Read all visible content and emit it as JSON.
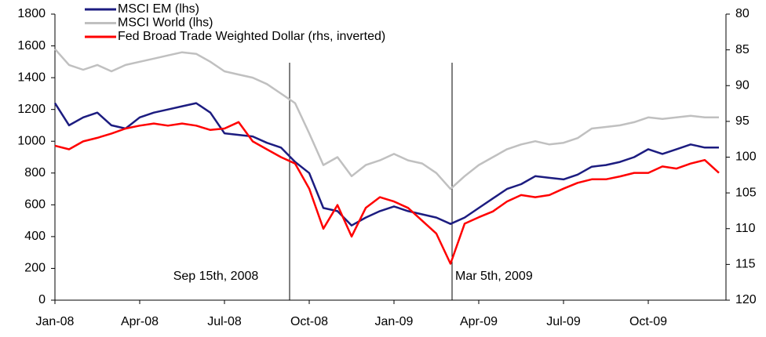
{
  "chart_data": {
    "type": "line",
    "categories": [
      "Jan-08",
      null,
      null,
      null,
      null,
      null,
      "Apr-08",
      null,
      null,
      null,
      null,
      null,
      "Jul-08",
      null,
      null,
      null,
      null,
      null,
      "Oct-08",
      null,
      null,
      null,
      null,
      null,
      "Jan-09",
      null,
      null,
      null,
      null,
      null,
      "Apr-09",
      null,
      null,
      null,
      null,
      null,
      "Jul-09",
      null,
      null,
      null,
      null,
      null,
      "Oct-09",
      null,
      null,
      null,
      null,
      null
    ],
    "series": [
      {
        "name": "MSCI EM (lhs)",
        "color": "#1c1c80",
        "values": [
          1240,
          1100,
          1150,
          1180,
          1100,
          1080,
          1150,
          1180,
          1200,
          1220,
          1240,
          1180,
          1050,
          1040,
          1030,
          990,
          960,
          870,
          800,
          580,
          560,
          470,
          520,
          560,
          590,
          560,
          540,
          520,
          480,
          520,
          580,
          640,
          700,
          730,
          780,
          770,
          760,
          790,
          840,
          850,
          870,
          900,
          950,
          920,
          950,
          980,
          960,
          960
        ]
      },
      {
        "name": "MSCI World (lhs)",
        "color": "#c0c0c0",
        "values": [
          1580,
          1480,
          1450,
          1480,
          1440,
          1480,
          1500,
          1520,
          1540,
          1560,
          1550,
          1500,
          1440,
          1420,
          1400,
          1360,
          1300,
          1240,
          1050,
          850,
          900,
          780,
          850,
          880,
          920,
          880,
          860,
          800,
          700,
          780,
          850,
          900,
          950,
          980,
          1000,
          980,
          990,
          1020,
          1080,
          1090,
          1100,
          1120,
          1150,
          1140,
          1150,
          1160,
          1150,
          1150
        ]
      },
      {
        "name": "Fed Broad Trade Weighted Dollar (rhs, inverted)",
        "color": "#ff0000",
        "axis": "y2",
        "values": [
          98.4,
          98.9,
          97.8,
          97.3,
          96.7,
          96.0,
          95.6,
          95.3,
          95.6,
          95.3,
          95.6,
          96.2,
          96.0,
          95.1,
          97.8,
          98.9,
          100.0,
          100.9,
          104.4,
          110.0,
          106.7,
          111.1,
          107.1,
          105.6,
          106.2,
          107.1,
          108.9,
          110.7,
          114.9,
          109.3,
          108.4,
          107.6,
          106.2,
          105.3,
          105.6,
          105.3,
          104.4,
          103.6,
          103.1,
          103.1,
          102.7,
          102.2,
          102.2,
          101.3,
          101.6,
          100.9,
          100.4,
          102.2
        ]
      }
    ],
    "ylim": [
      0,
      1800
    ],
    "yticks": [
      0,
      200,
      400,
      600,
      800,
      1000,
      1200,
      1400,
      1600,
      1800
    ],
    "y2lim": [
      80,
      120
    ],
    "y2ticks": [
      80,
      85,
      90,
      95,
      100,
      105,
      110,
      115,
      120
    ],
    "y2_inverted": true,
    "legend": "upper left",
    "annotations": [
      "Sep 15th, 2008",
      "Mar 5th, 2009"
    ]
  }
}
